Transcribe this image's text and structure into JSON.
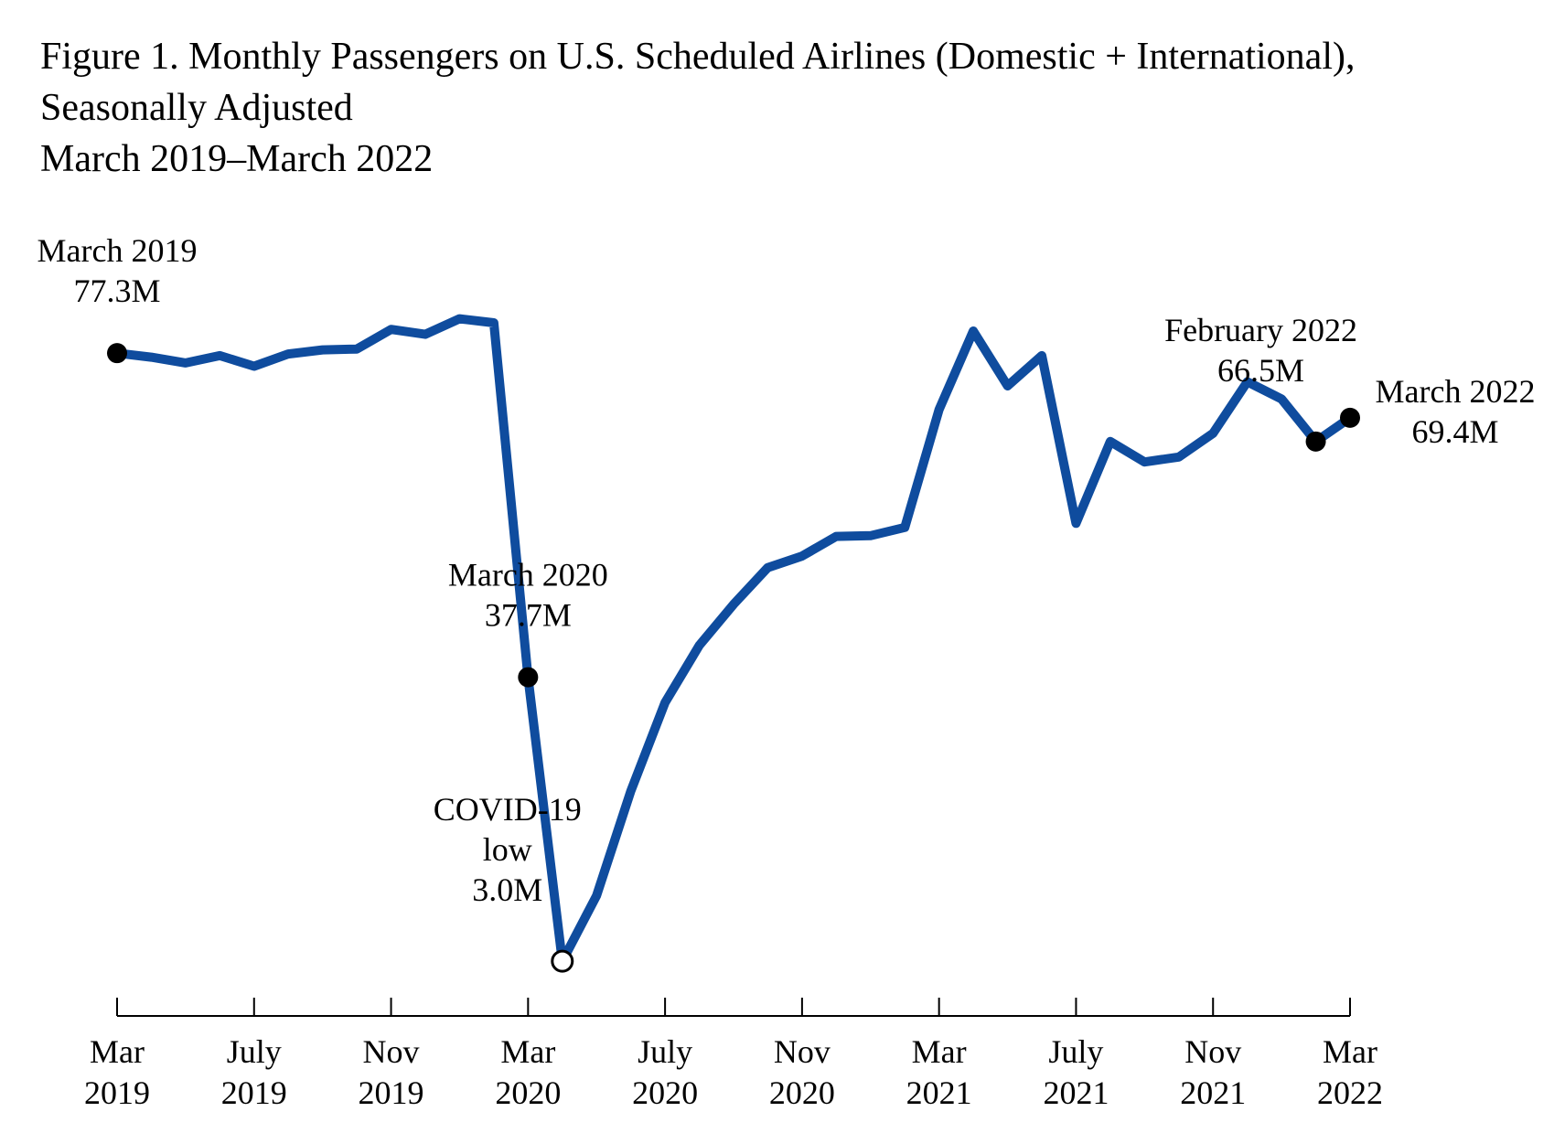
{
  "chart_data": {
    "type": "line",
    "title": [
      "Figure 1. Monthly Passengers on U.S. Scheduled Airlines (Domestic + International),",
      "Seasonally Adjusted",
      "March 2019–March 2022"
    ],
    "xlabel": "",
    "ylabel": "",
    "grid": false,
    "unit": "millions of passengers",
    "ylim": [
      0,
      80
    ],
    "series": [
      {
        "name": "Monthly passengers (seasonally adjusted)",
        "color": "#0f4c9e",
        "months": [
          "2019-03",
          "2019-04",
          "2019-05",
          "2019-06",
          "2019-07",
          "2019-08",
          "2019-09",
          "2019-10",
          "2019-11",
          "2019-12",
          "2020-01",
          "2020-02",
          "2020-03",
          "2020-04",
          "2020-05",
          "2020-06",
          "2020-07",
          "2020-08",
          "2020-09",
          "2020-10",
          "2020-11",
          "2020-12",
          "2021-01",
          "2021-02",
          "2021-03",
          "2021-04",
          "2021-05",
          "2021-06",
          "2021-07",
          "2021-08",
          "2021-09",
          "2021-10",
          "2021-11",
          "2021-12",
          "2022-01",
          "2022-02",
          "2022-03"
        ],
        "values": [
          77.3,
          76.8,
          76.1,
          77.0,
          75.7,
          77.2,
          77.7,
          77.8,
          80.2,
          79.6,
          81.5,
          81.0,
          37.7,
          3.0,
          11.0,
          23.8,
          34.6,
          41.6,
          46.6,
          51.1,
          52.5,
          54.9,
          55.0,
          56.0,
          70.4,
          80.0,
          73.3,
          77.0,
          56.5,
          66.5,
          64.0,
          64.6,
          67.5,
          73.8,
          71.7,
          66.5,
          69.4
        ]
      }
    ],
    "x_ticks": [
      {
        "month": "2019-03",
        "label": [
          "Mar",
          "2019"
        ]
      },
      {
        "month": "2019-07",
        "label": [
          "July",
          "2019"
        ]
      },
      {
        "month": "2019-11",
        "label": [
          "Nov",
          "2019"
        ]
      },
      {
        "month": "2020-03",
        "label": [
          "Mar",
          "2020"
        ]
      },
      {
        "month": "2020-07",
        "label": [
          "July",
          "2020"
        ]
      },
      {
        "month": "2020-11",
        "label": [
          "Nov",
          "2020"
        ]
      },
      {
        "month": "2021-03",
        "label": [
          "Mar",
          "2021"
        ]
      },
      {
        "month": "2021-07",
        "label": [
          "July",
          "2021"
        ]
      },
      {
        "month": "2021-11",
        "label": [
          "Nov",
          "2021"
        ]
      },
      {
        "month": "2022-03",
        "label": [
          "Mar",
          "2022"
        ]
      }
    ],
    "annotations": [
      {
        "month": "2019-03",
        "value": 77.3,
        "lines": [
          "March 2019",
          "77.3M"
        ],
        "marker": "filled",
        "placement": "above"
      },
      {
        "month": "2020-03",
        "value": 37.7,
        "lines": [
          "March 2020",
          "37.7M"
        ],
        "marker": "filled",
        "placement": "above"
      },
      {
        "month": "2020-04",
        "value": 3.0,
        "lines": [
          "COVID-19",
          "low",
          "3.0M"
        ],
        "marker": "hollow",
        "placement": "above-left"
      },
      {
        "month": "2022-02",
        "value": 66.5,
        "lines": [
          "February 2022",
          "66.5M"
        ],
        "marker": "filled",
        "placement": "above-left"
      },
      {
        "month": "2022-03",
        "value": 69.4,
        "lines": [
          "March 2022",
          "69.4M"
        ],
        "marker": "filled",
        "placement": "right"
      }
    ]
  }
}
